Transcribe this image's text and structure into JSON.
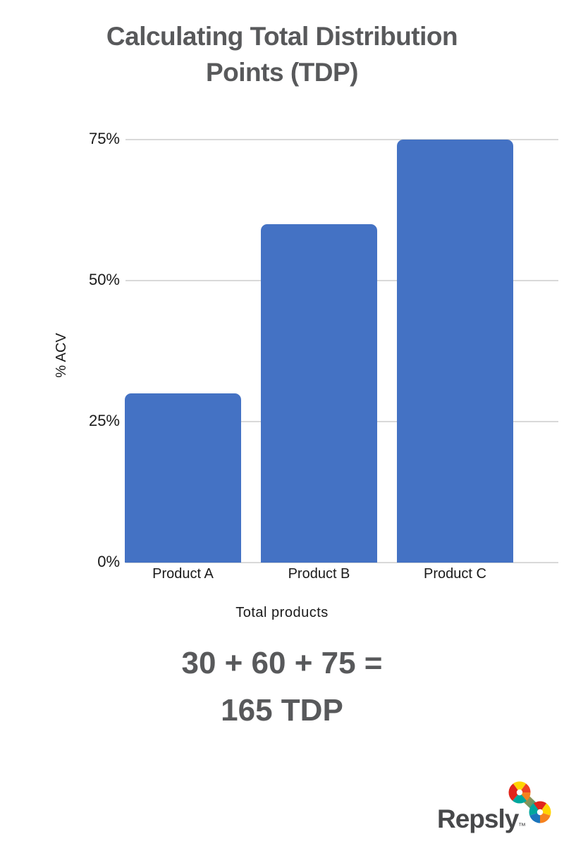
{
  "title": {
    "line1": "Calculating Total Distribution",
    "line2": "Points (TDP)"
  },
  "chart_data": {
    "type": "bar",
    "title": "Calculating Total Distribution Points (TDP)",
    "categories": [
      "Product A",
      "Product B",
      "Product C"
    ],
    "values": [
      30,
      60,
      75
    ],
    "xlabel": "Total products",
    "ylabel": "% ACV",
    "yticks": [
      {
        "value": 0,
        "label": "0%"
      },
      {
        "value": 25,
        "label": "25%"
      },
      {
        "value": 50,
        "label": "50%"
      },
      {
        "value": 75,
        "label": "75%"
      }
    ],
    "ylim": [
      0,
      80
    ],
    "grid": true,
    "legend": false,
    "bar_color": "#4472C4",
    "gridline_color": "#D9D9D9"
  },
  "equation": {
    "line1": "30 + 60 + 75 =",
    "line2": "165 TDP"
  },
  "logo": {
    "wordmark": "Repsly",
    "trademark": "™",
    "mark_icon": "pinwheel-infinity-icon",
    "colors": {
      "yellow": "#FFD400",
      "orange": "#F5821F",
      "orange_red": "#EF4123",
      "red": "#E1251B",
      "teal": "#00A79D",
      "blue": "#1B75BC",
      "white": "#FFFFFF"
    }
  },
  "colors": {
    "heading_text": "#58595B",
    "axis_text": "#1A1A1A",
    "background": "#FFFFFF"
  }
}
